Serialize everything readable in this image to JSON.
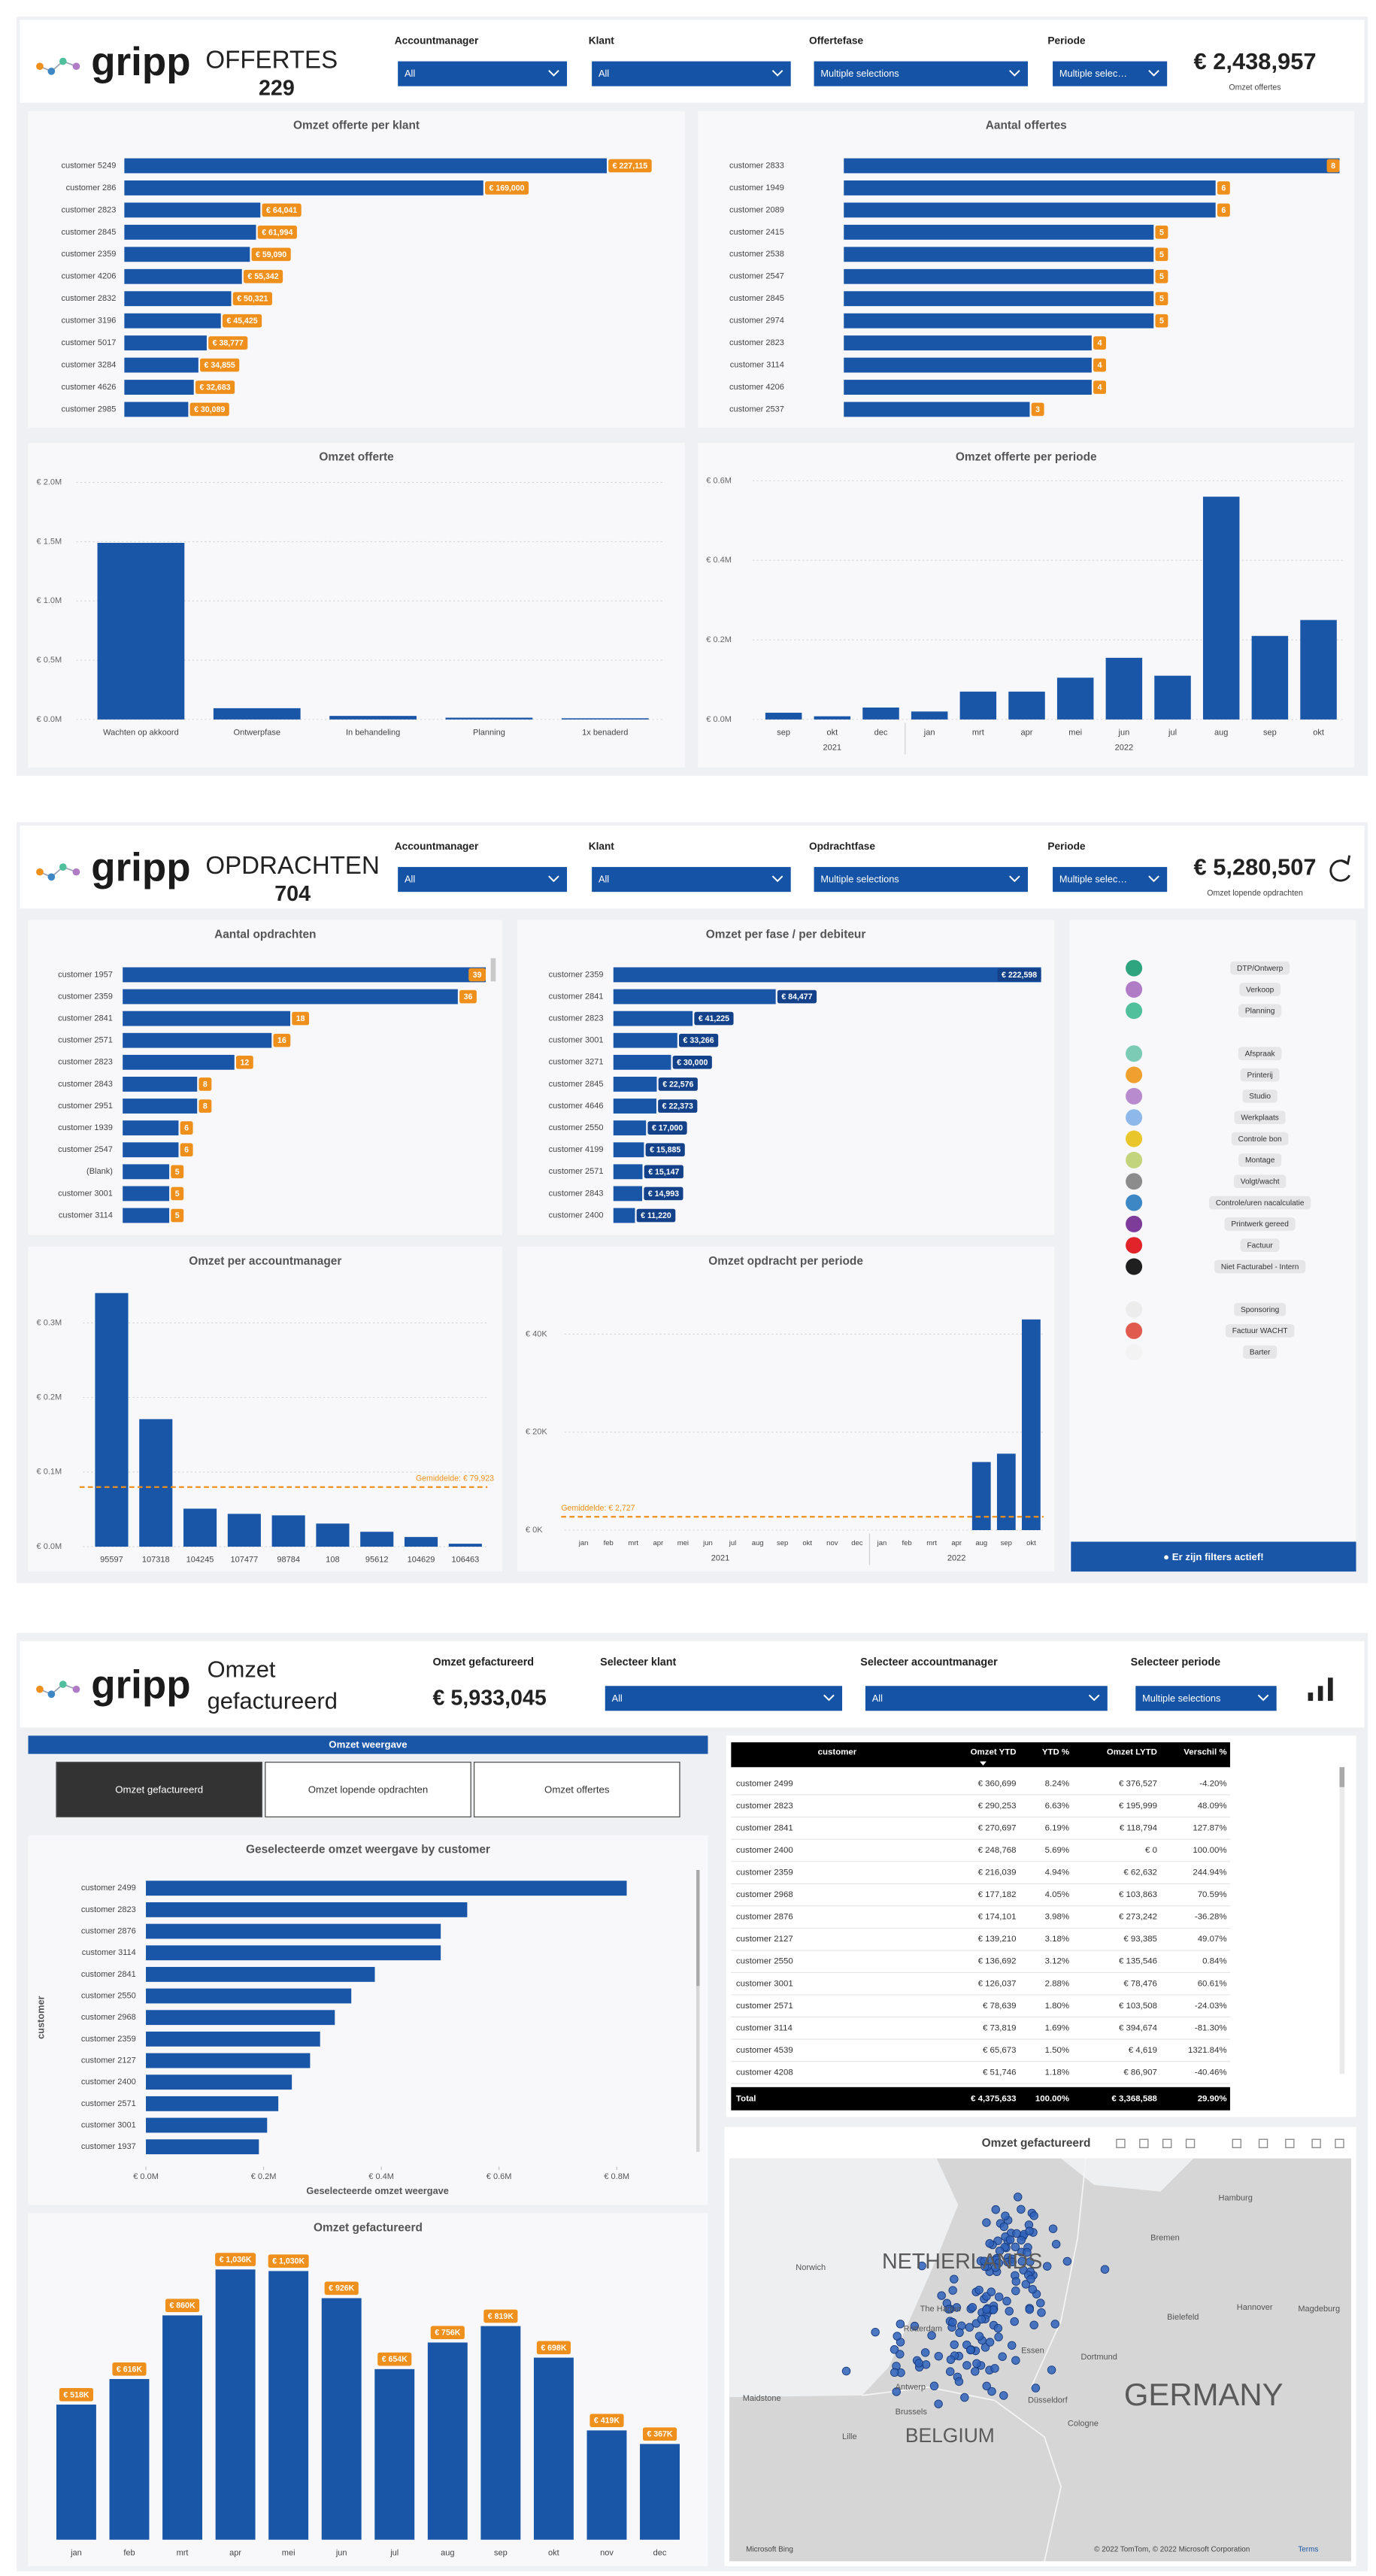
{
  "offertes": {
    "logo": "gripp",
    "title": "OFFERTES",
    "count": 229,
    "filters": [
      {
        "label": "Accountmanager",
        "value": "All"
      },
      {
        "label": "Klant",
        "value": "All"
      },
      {
        "label": "Offertefase",
        "value": "Multiple selections"
      },
      {
        "label": "Periode",
        "value": "Multiple selec…"
      }
    ],
    "kpi": {
      "value": "€ 2,438,957",
      "label": "Omzet offertes"
    }
  },
  "opdrachten": {
    "logo": "gripp",
    "title": "OPDRACHTEN",
    "count": 704,
    "filters": [
      {
        "label": "Accountmanager",
        "value": "All"
      },
      {
        "label": "Klant",
        "value": "All"
      },
      {
        "label": "Opdrachtfase",
        "value": "Multiple selections"
      },
      {
        "label": "Periode",
        "value": "Multiple selec…"
      }
    ],
    "kpi": {
      "value": "€ 5,280,507",
      "label": "Omzet lopende opdrachten"
    },
    "legend": {
      "groups": [
        [
          {
            "name": "DTP/Ontwerp",
            "color": "#2fa57f"
          },
          {
            "name": "Verkoop",
            "color": "#b07cc6"
          },
          {
            "name": "Planning",
            "color": "#4fbf9c"
          }
        ],
        [
          {
            "name": "Afspraak",
            "color": "#7ccbb5"
          },
          {
            "name": "Printerij",
            "color": "#f0a02e"
          },
          {
            "name": "Studio",
            "color": "#b88bcf"
          },
          {
            "name": "Werkplaats",
            "color": "#8fb8ea"
          },
          {
            "name": "Controle bon",
            "color": "#e9c72c"
          },
          {
            "name": "Montage",
            "color": "#c2d57c"
          },
          {
            "name": "Volgt/wacht",
            "color": "#8c8c8c"
          },
          {
            "name": "Controle/uren nacalculatie",
            "color": "#3d88c4"
          },
          {
            "name": "Printwerk gereed",
            "color": "#7d3b9a"
          },
          {
            "name": "Factuur",
            "color": "#e0242a"
          },
          {
            "name": "Niet Facturabel - Intern",
            "color": "#1f1f1f"
          }
        ],
        [
          {
            "name": "Sponsoring",
            "color": "#ececec"
          },
          {
            "name": "Factuur WACHT",
            "color": "#e05a4e"
          },
          {
            "name": "Barter",
            "color": "#f3f3f3"
          }
        ]
      ],
      "button": "● Er zijn filters actief!"
    }
  },
  "gefactureerd": {
    "logo": "gripp",
    "title": [
      "Omzet",
      "gefactureerd"
    ],
    "kpi": {
      "label": "Omzet gefactureerd",
      "value": "€ 5,933,045"
    },
    "filters": [
      {
        "label": "Selecteer klant",
        "value": "All"
      },
      {
        "label": "Selecteer accountmanager",
        "value": "All"
      },
      {
        "label": "Selecteer periode",
        "value": "Multiple selections"
      }
    ],
    "tabs": {
      "title": "Omzet weergave",
      "buttons": [
        "Omzet gefactureerd",
        "Omzet lopende opdrachten",
        "Omzet offertes"
      ],
      "selected": 0
    },
    "table": {
      "columns": [
        "customer",
        "Omzet YTD",
        "YTD %",
        "Omzet LYTD",
        "Verschil %"
      ],
      "rows": [
        [
          "customer 2499",
          "€ 360,699",
          "8.24%",
          "€ 376,527",
          "-4.20%"
        ],
        [
          "customer 2823",
          "€ 290,253",
          "6.63%",
          "€ 195,999",
          "48.09%"
        ],
        [
          "customer 2841",
          "€ 270,697",
          "6.19%",
          "€ 118,794",
          "127.87%"
        ],
        [
          "customer 2400",
          "€ 248,768",
          "5.69%",
          "€ 0",
          "100.00%"
        ],
        [
          "customer 2359",
          "€ 216,039",
          "4.94%",
          "€ 62,632",
          "244.94%"
        ],
        [
          "customer 2968",
          "€ 177,182",
          "4.05%",
          "€ 103,863",
          "70.59%"
        ],
        [
          "customer 2876",
          "€ 174,101",
          "3.98%",
          "€ 273,242",
          "-36.28%"
        ],
        [
          "customer 2127",
          "€ 139,210",
          "3.18%",
          "€ 93,385",
          "49.07%"
        ],
        [
          "customer 2550",
          "€ 136,692",
          "3.12%",
          "€ 135,546",
          "0.84%"
        ],
        [
          "customer 3001",
          "€ 126,037",
          "2.88%",
          "€ 78,476",
          "60.61%"
        ],
        [
          "customer 2571",
          "€ 78,639",
          "1.80%",
          "€ 103,508",
          "-24.03%"
        ],
        [
          "customer 3114",
          "€ 73,819",
          "1.69%",
          "€ 394,674",
          "-81.30%"
        ],
        [
          "customer 4539",
          "€ 65,673",
          "1.50%",
          "€ 4,619",
          "1321.84%"
        ],
        [
          "customer 4208",
          "€ 51,746",
          "1.18%",
          "€ 86,907",
          "-40.46%"
        ]
      ],
      "total": [
        "Total",
        "€ 4,375,633",
        "100.00%",
        "€ 3,368,588",
        "29.90%"
      ]
    },
    "map": {
      "title": "Omzet gefactureerd",
      "countries": [
        "NETHERLANDS",
        "GERMANY",
        "BELGIUM"
      ],
      "cities": [
        "Hamburg",
        "Bremen",
        "Hannover",
        "Magdeburg",
        "Bielefeld",
        "Dortmund",
        "Essen",
        "Düsseldorf",
        "Cologne",
        "Norwich",
        "The Hague",
        "Rotterdam",
        "Antwerp",
        "Brussels",
        "Lille",
        "Maidstone"
      ],
      "provider": "Microsoft Bing",
      "attribution": "© 2022 TomTom, © 2022 Microsoft Corporation",
      "terms": "Terms"
    }
  },
  "chart_data": [
    {
      "type": "bar",
      "orientation": "horizontal",
      "title": "Omzet offerte per klant",
      "categories": [
        "customer 5249",
        "customer 286",
        "customer 2823",
        "customer 2845",
        "customer 2359",
        "customer 4206",
        "customer 2832",
        "customer 3196",
        "customer 5017",
        "customer 3284",
        "customer 4626",
        "customer 2985"
      ],
      "values": [
        227115,
        169000,
        64041,
        61994,
        59090,
        55342,
        50321,
        45425,
        38777,
        34855,
        32683,
        30089
      ],
      "value_labels": [
        "€ 227,115",
        "€ 169,000",
        "€ 64,041",
        "€ 61,994",
        "€ 59,090",
        "€ 55,342",
        "€ 50,321",
        "€ 45,425",
        "€ 38,777",
        "€ 34,855",
        "€ 32,683",
        "€ 30,089"
      ],
      "color": "#1a56a8",
      "label_color": "#f0901c"
    },
    {
      "type": "bar",
      "orientation": "horizontal",
      "title": "Aantal offertes",
      "categories": [
        "customer 2833",
        "customer 1949",
        "customer 2089",
        "customer 2415",
        "customer 2538",
        "customer 2547",
        "customer 2845",
        "customer 2974",
        "customer 2823",
        "customer 3114",
        "customer 4206",
        "customer 2537"
      ],
      "values": [
        8,
        6,
        6,
        5,
        5,
        5,
        5,
        5,
        4,
        4,
        4,
        3
      ],
      "color": "#1a56a8",
      "label_color": "#f0901c"
    },
    {
      "type": "bar",
      "orientation": "vertical",
      "title": "Omzet offerte",
      "categories": [
        "Wachten op akkoord",
        "Ontwerpfase",
        "In behandeling",
        "Planning",
        "1x benaderd"
      ],
      "values": [
        1490000,
        95000,
        30000,
        15000,
        10000
      ],
      "color": "#1a56a8",
      "ylim": [
        0,
        2000000
      ],
      "yticks": [
        {
          "value": 0,
          "label": "€ 0.0M"
        },
        {
          "value": 500000,
          "label": "€ 0.5M"
        },
        {
          "value": 1000000,
          "label": "€ 1.0M"
        },
        {
          "value": 1500000,
          "label": "€ 1.5M"
        },
        {
          "value": 2000000,
          "label": "€ 2.0M"
        }
      ],
      "grid": true
    },
    {
      "type": "bar",
      "orientation": "vertical",
      "title": "Omzet offerte per periode",
      "category_groups": [
        {
          "name": "2021",
          "categories": [
            "sep",
            "okt",
            "dec"
          ]
        },
        {
          "name": "2022",
          "categories": [
            "jan",
            "mrt",
            "apr",
            "mei",
            "jun",
            "jul",
            "aug",
            "sep",
            "okt"
          ]
        }
      ],
      "values": [
        17000,
        8000,
        30000,
        20000,
        70000,
        70000,
        105000,
        155000,
        110000,
        560000,
        210000,
        250000
      ],
      "color": "#1a56a8",
      "ylim": [
        0,
        600000
      ],
      "yticks": [
        {
          "value": 0,
          "label": "€ 0.0M"
        },
        {
          "value": 200000,
          "label": "€ 0.2M"
        },
        {
          "value": 400000,
          "label": "€ 0.4M"
        },
        {
          "value": 600000,
          "label": "€ 0.6M"
        }
      ],
      "grid": true
    },
    {
      "type": "bar",
      "orientation": "horizontal",
      "title": "Aantal opdrachten",
      "categories": [
        "customer 1957",
        "customer 2359",
        "customer 2841",
        "customer 2571",
        "customer 2823",
        "customer 2843",
        "customer 2951",
        "customer 1939",
        "customer 2547",
        "(Blank)",
        "customer 3001",
        "customer 3114"
      ],
      "values": [
        39,
        36,
        18,
        16,
        12,
        8,
        8,
        6,
        6,
        5,
        5,
        5
      ],
      "color": "#1a56a8",
      "label_color": "#f0901c"
    },
    {
      "type": "bar",
      "orientation": "horizontal",
      "title": "Omzet per fase / per debiteur",
      "categories": [
        "customer 2359",
        "customer 2841",
        "customer 2823",
        "customer 3001",
        "customer 3271",
        "customer 2845",
        "customer 4646",
        "customer 2550",
        "customer 4199",
        "customer 2571",
        "customer 2843",
        "customer 2400"
      ],
      "values": [
        222598,
        84477,
        41225,
        33266,
        30000,
        22576,
        22373,
        17000,
        15885,
        15147,
        14993,
        11220
      ],
      "value_labels": [
        "€ 222,598",
        "€ 84,477",
        "€ 41,225",
        "€ 33,266",
        "€ 30,000",
        "€ 22,576",
        "€ 22,373",
        "€ 17,000",
        "€ 15,885",
        "€ 15,147",
        "€ 14,993",
        "€ 11,220"
      ],
      "color": "#1a56a8",
      "label_color": "#13428a"
    },
    {
      "type": "bar",
      "orientation": "vertical",
      "title": "Omzet per accountmanager",
      "categories": [
        "95597",
        "107318",
        "104245",
        "107477",
        "98784",
        "108",
        "95612",
        "104629",
        "106463"
      ],
      "values": [
        340000,
        171000,
        51000,
        44000,
        42000,
        31000,
        20000,
        13000,
        4000
      ],
      "color": "#1a56a8",
      "ylim": [
        0,
        350000
      ],
      "yticks": [
        {
          "value": 0,
          "label": "€ 0.0M"
        },
        {
          "value": 100000,
          "label": "€ 0.1M"
        },
        {
          "value": 200000,
          "label": "€ 0.2M"
        },
        {
          "value": 300000,
          "label": "€ 0.3M"
        }
      ],
      "grid": true,
      "average": {
        "value": 79923,
        "label": "Gemiddelde: € 79,923",
        "color": "#f0901c"
      }
    },
    {
      "type": "bar",
      "orientation": "vertical",
      "title": "Omzet opdracht per periode",
      "category_groups": [
        {
          "name": "2021",
          "categories": [
            "jan",
            "feb",
            "mrt",
            "apr",
            "mei",
            "jun",
            "jul",
            "aug",
            "sep",
            "okt",
            "nov",
            "dec"
          ]
        },
        {
          "name": "2022",
          "categories": [
            "jan",
            "feb",
            "mrt",
            "apr",
            "aug",
            "sep",
            "okt"
          ]
        }
      ],
      "values": [
        null,
        null,
        null,
        null,
        null,
        null,
        null,
        null,
        null,
        null,
        null,
        null,
        null,
        null,
        null,
        null,
        13900,
        15600,
        43000
      ],
      "color": "#1a56a8",
      "ylim": [
        0,
        45000
      ],
      "yticks": [
        {
          "value": 0,
          "label": "€ 0K"
        },
        {
          "value": 20000,
          "label": "€ 20K"
        },
        {
          "value": 40000,
          "label": "€ 40K"
        }
      ],
      "grid": true,
      "average": {
        "value": 2727,
        "label": "Gemiddelde: € 2,727",
        "color": "#f0901c"
      }
    },
    {
      "type": "bar",
      "orientation": "horizontal",
      "title": "Geselecteerde omzet weergave by customer",
      "x_label": "Geselecteerde omzet weergave",
      "y_label": "customer",
      "categories": [
        "customer 2499",
        "customer 2823",
        "customer 2876",
        "customer 3114",
        "customer 2841",
        "customer 2550",
        "customer 2968",
        "customer 2359",
        "customer 2127",
        "customer 2400",
        "customer 2571",
        "customer 3001",
        "customer 1937"
      ],
      "values": [
        817000,
        546000,
        501000,
        501000,
        389000,
        349000,
        321000,
        296000,
        279000,
        248000,
        225000,
        206000,
        192000
      ],
      "color": "#1a56a8",
      "xlim": [
        0,
        900000
      ],
      "xticks": [
        {
          "value": 0,
          "label": "€ 0.0M"
        },
        {
          "value": 200000,
          "label": "€ 0.2M"
        },
        {
          "value": 400000,
          "label": "€ 0.4M"
        },
        {
          "value": 600000,
          "label": "€ 0.6M"
        },
        {
          "value": 800000,
          "label": "€ 0.8M"
        }
      ]
    },
    {
      "type": "bar",
      "orientation": "vertical",
      "title": "Omzet gefactureerd",
      "categories": [
        "jan",
        "feb",
        "mrt",
        "apr",
        "mei",
        "jun",
        "jul",
        "aug",
        "sep",
        "okt",
        "nov",
        "dec"
      ],
      "values": [
        518,
        616,
        860,
        1036,
        1030,
        926,
        654,
        756,
        819,
        698,
        419,
        367
      ],
      "value_labels": [
        "€ 518K",
        "€ 616K",
        "€ 860K",
        "€ 1,036K",
        "€ 1,030K",
        "€ 926K",
        "€ 654K",
        "€ 756K",
        "€ 819K",
        "€ 698K",
        "€ 419K",
        "€ 367K"
      ],
      "color": "#1a56a8",
      "label_color": "#f0901c"
    }
  ]
}
